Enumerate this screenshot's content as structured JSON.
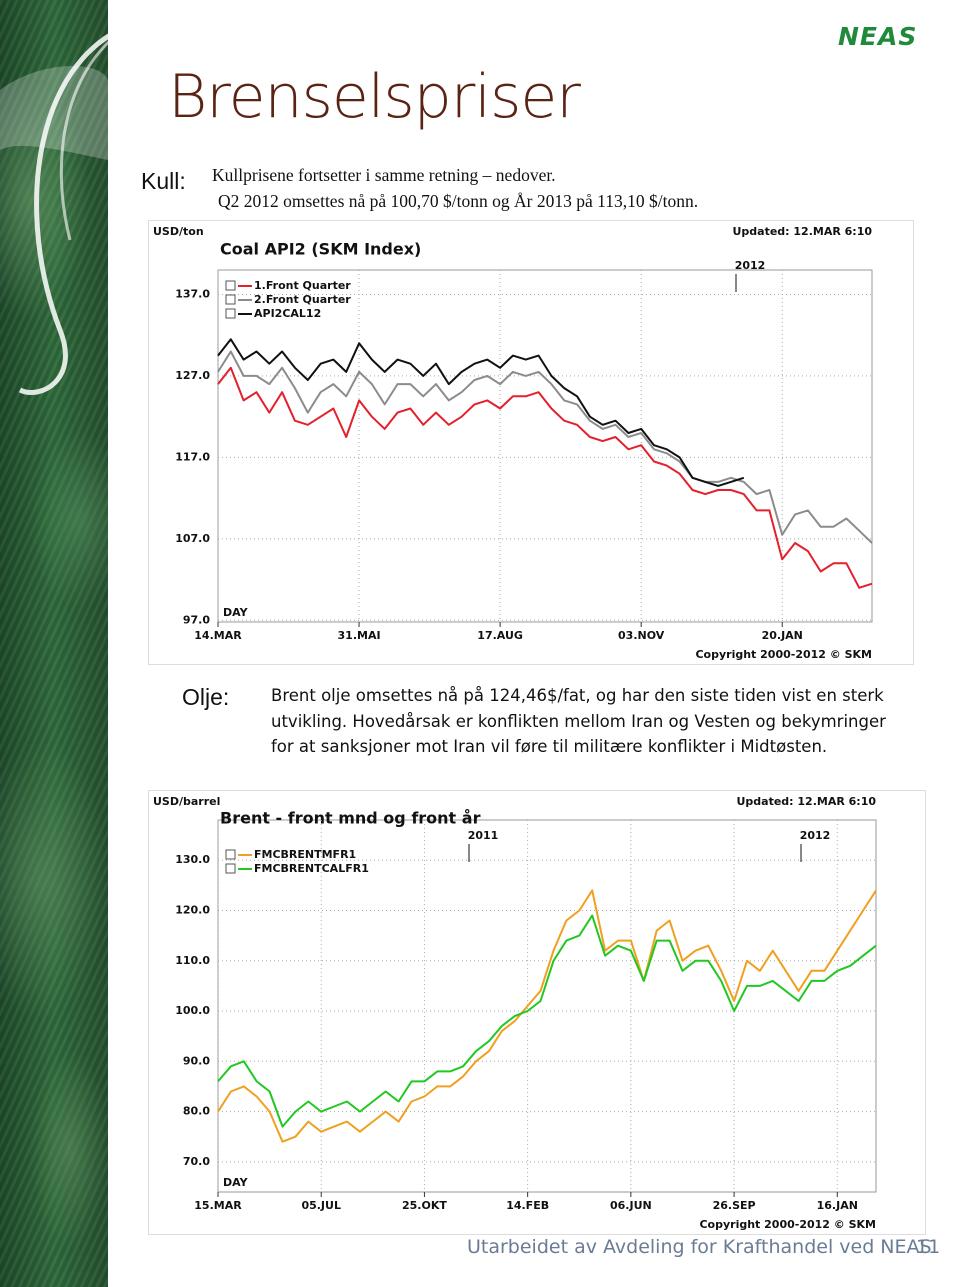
{
  "header": {
    "title": "Brenselspriser",
    "logo": "NEAS"
  },
  "sections": [
    {
      "label": "Kull:",
      "lines": [
        "Kullprisene fortsetter i samme retning – nedover.",
        "Q2 2012 omsettes nå på 100,70 $/tonn og  År 2013 på 113,10 $/tonn."
      ]
    },
    {
      "label": "Olje:",
      "text": "Brent olje omsettes nå på 124,46$/fat, og har den siste tiden vist en sterk utvikling.  Hovedårsak er konflikten mellom Iran og Vesten og bekymringer for at sanksjoner mot Iran vil føre til militære konflikter i Midtøsten."
    }
  ],
  "chart_data": [
    {
      "type": "line",
      "title": "Coal API2 (SKM Index)",
      "y_label": "USD/ton",
      "updated": "Updated: 12.MAR 6:10",
      "copyright": "Copyright 2000-2012 © SKM",
      "x_label": "DAY",
      "grid": true,
      "annotations": [
        "2012"
      ],
      "categories": [
        "14.MAR",
        null,
        null,
        null,
        null,
        null,
        null,
        null,
        null,
        null,
        null,
        "31.MAI",
        null,
        null,
        null,
        null,
        null,
        null,
        null,
        null,
        null,
        null,
        "17.AUG",
        null,
        null,
        null,
        null,
        null,
        null,
        null,
        null,
        null,
        null,
        "03.NOV",
        null,
        null,
        null,
        null,
        null,
        null,
        null,
        null,
        null,
        null,
        "20.JAN",
        null,
        null,
        null,
        null,
        null,
        null,
        null
      ],
      "ylim": [
        96.8,
        140
      ],
      "yticks": [
        {
          "value": 97,
          "label": "97.0"
        },
        {
          "value": 107,
          "label": "107.0"
        },
        {
          "value": 117,
          "label": "117.0"
        },
        {
          "value": 127,
          "label": "127.0"
        },
        {
          "value": 137,
          "label": "137.0"
        }
      ],
      "series": [
        {
          "name": "1.Front Quarter",
          "color": "#e3202b",
          "values": [
            126,
            128,
            124,
            125,
            122.5,
            125,
            121.5,
            121,
            122,
            123,
            119.5,
            124,
            122,
            120.5,
            122.5,
            123,
            121,
            122.5,
            121,
            122,
            123.5,
            124,
            123,
            124.5,
            124.5,
            125,
            123,
            121.5,
            121,
            119.5,
            119,
            119.5,
            118,
            118.5,
            116.5,
            116,
            115,
            113,
            112.5,
            113,
            113,
            112.5,
            110.5,
            110.5,
            104.5,
            106.5,
            105.5,
            103,
            104,
            104,
            101,
            101.5
          ]
        },
        {
          "name": "2.Front Quarter",
          "color": "#8c8c8c",
          "values": [
            127.5,
            130,
            127,
            127,
            126,
            128,
            125.5,
            122.5,
            125,
            126,
            124.5,
            127.5,
            126,
            123.5,
            126,
            126,
            124.5,
            126,
            124,
            125,
            126.5,
            127,
            126,
            127.5,
            127,
            127.5,
            126,
            124,
            123.5,
            121.5,
            120.5,
            121,
            119.5,
            120,
            118,
            117.5,
            116.5,
            114.5,
            114,
            114,
            114.5,
            114,
            112.5,
            113,
            107.5,
            110,
            110.5,
            108.5,
            108.5,
            109.5,
            108,
            106.5
          ]
        },
        {
          "name": "API2CAL12",
          "color": "#111111",
          "values": [
            129.5,
            131.5,
            129,
            130,
            128.5,
            130,
            128,
            126.5,
            128.5,
            129,
            127.5,
            131,
            129,
            127.5,
            129,
            128.5,
            127,
            128.5,
            126,
            127.5,
            128.5,
            129,
            128,
            129.5,
            129,
            129.5,
            127,
            125.5,
            124.5,
            122,
            121,
            121.5,
            120,
            120.5,
            118.5,
            118,
            117,
            114.5,
            114,
            113.5,
            114,
            114.5,
            null,
            null,
            null,
            null,
            null,
            null,
            null,
            null,
            null,
            null
          ]
        }
      ]
    },
    {
      "type": "line",
      "title": "Brent - front mnd og front år",
      "y_label": "USD/barrel",
      "updated": "Updated: 12.MAR 6:10",
      "copyright": "Copyright 2000-2012 © SKM",
      "x_label": "DAY",
      "grid": true,
      "annotations": [
        "2011",
        "2012"
      ],
      "categories": [
        "15.MAR",
        null,
        null,
        null,
        null,
        null,
        null,
        null,
        "05.JUL",
        null,
        null,
        null,
        null,
        null,
        null,
        null,
        "25.OKT",
        null,
        null,
        null,
        null,
        null,
        null,
        null,
        "14.FEB",
        null,
        null,
        null,
        null,
        null,
        null,
        null,
        "06.JUN",
        null,
        null,
        null,
        null,
        null,
        null,
        null,
        "26.SEP",
        null,
        null,
        null,
        null,
        null,
        null,
        null,
        "16.JAN",
        null,
        null,
        null
      ],
      "ylim": [
        64,
        138
      ],
      "yticks": [
        {
          "value": 70,
          "label": "70.0"
        },
        {
          "value": 80,
          "label": "80.0"
        },
        {
          "value": 90,
          "label": "90.0"
        },
        {
          "value": 100,
          "label": "100.0"
        },
        {
          "value": 110,
          "label": "110.0"
        },
        {
          "value": 120,
          "label": "120.0"
        },
        {
          "value": 130,
          "label": "130.0"
        }
      ],
      "series": [
        {
          "name": "FMCBRENTMFR1",
          "color": "#f0a020",
          "values": [
            80,
            84,
            85,
            83,
            80,
            74,
            75,
            78,
            76,
            77,
            78,
            76,
            78,
            80,
            78,
            82,
            83,
            85,
            85,
            87,
            90,
            92,
            96,
            98,
            101,
            104,
            112,
            118,
            120,
            124,
            112,
            114,
            114,
            106,
            116,
            118,
            110,
            112,
            113,
            108,
            102,
            110,
            108,
            112,
            108,
            104,
            108,
            108,
            112,
            116,
            120,
            124
          ]
        },
        {
          "name": "FMCBRENTCALFR1",
          "color": "#22c822",
          "values": [
            86,
            89,
            90,
            86,
            84,
            77,
            80,
            82,
            80,
            81,
            82,
            80,
            82,
            84,
            82,
            86,
            86,
            88,
            88,
            89,
            92,
            94,
            97,
            99,
            100,
            102,
            110,
            114,
            115,
            119,
            111,
            113,
            112,
            106,
            114,
            114,
            108,
            110,
            110,
            106,
            100,
            105,
            105,
            106,
            104,
            102,
            106,
            106,
            108,
            109,
            111,
            113
          ]
        }
      ]
    }
  ],
  "footer": {
    "text": "Utarbeidet av Avdeling for Krafthandel ved NEAS",
    "page": "11"
  }
}
